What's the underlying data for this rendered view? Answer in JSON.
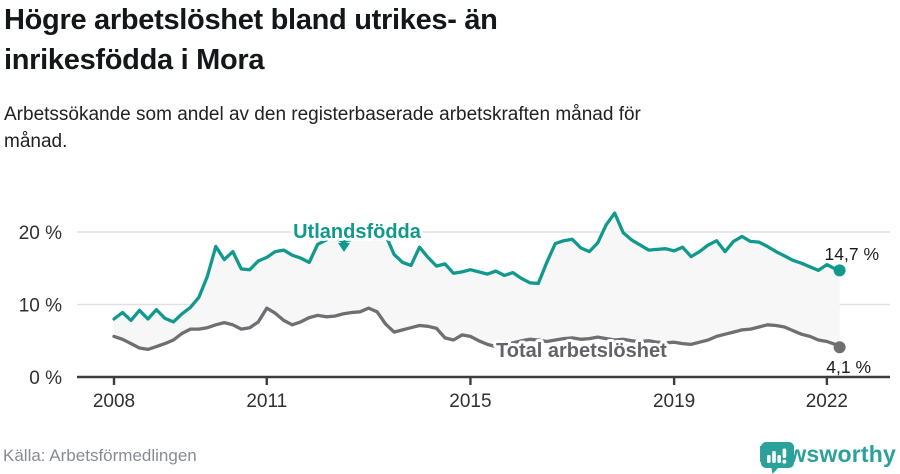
{
  "header": {
    "title_line1": "Högre arbetslöshet bland utrikes- än",
    "title_line2": "inrikesfödda i Mora",
    "subtitle_line1": "Arbetssökande som andel av den registerbaserade arbetskraften månad för",
    "subtitle_line2": "månad."
  },
  "footer": {
    "source": "Källa: Arbetsförmedlingen",
    "brand": "Newsworthy"
  },
  "colors": {
    "teal": "#12998e",
    "gray_line": "#6e6e73",
    "gray_label": "#62626a",
    "band_fill": "#f7f7f7",
    "gridline": "#e1e1e3",
    "axis": "#3d3d3d",
    "tick_text": "#303030",
    "value_text": "#1c1c1c",
    "logo_teal": "#2ba19b"
  },
  "chart_data": {
    "type": "line",
    "title": "Högre arbetslöshet bland utrikes- än inrikesfödda i Mora",
    "subtitle": "Arbetssökande som andel av den registerbaserade arbetskraften månad för månad.",
    "xlabel": "",
    "ylabel": "",
    "ylim": [
      0,
      24
    ],
    "xlim": [
      2008,
      2022.25
    ],
    "x_start": 2008.0,
    "x_step_years": 0.16667,
    "x_last_point": 2022.25,
    "grid": "horizontal",
    "band_fill_between_series": true,
    "legend_position": "inline-labels",
    "x_tick_years": [
      2008,
      2011,
      2015,
      2019,
      2022
    ],
    "x_tick_labels": [
      "2008",
      "2011",
      "2015",
      "2019",
      "2022"
    ],
    "y_ticks": [
      {
        "value": 0,
        "label": "0 %"
      },
      {
        "value": 10,
        "label": "10 %"
      },
      {
        "value": 20,
        "label": "20 %"
      }
    ],
    "series": [
      {
        "name": "Utlandsfödda",
        "color": "#12998e",
        "end_label": "14,7 %",
        "end_value": 14.7,
        "values": [
          8.0,
          8.9,
          7.8,
          9.2,
          8.0,
          9.3,
          8.1,
          7.6,
          8.7,
          9.6,
          11.0,
          13.9,
          18.0,
          16.2,
          17.3,
          14.9,
          14.8,
          16.0,
          16.5,
          17.3,
          17.5,
          16.8,
          16.4,
          15.8,
          18.3,
          18.9,
          19.3,
          18.6,
          19.0,
          19.3,
          19.8,
          20.4,
          19.6,
          16.9,
          15.8,
          15.4,
          17.9,
          16.5,
          15.3,
          15.6,
          14.3,
          14.5,
          14.8,
          14.5,
          14.2,
          14.6,
          14.0,
          14.4,
          13.6,
          13.0,
          12.9,
          15.8,
          18.4,
          18.8,
          19.0,
          17.8,
          17.3,
          18.5,
          21.0,
          22.6,
          19.9,
          18.9,
          18.2,
          17.5,
          17.6,
          17.7,
          17.4,
          17.9,
          16.6,
          17.3,
          18.2,
          18.8,
          17.3,
          18.7,
          19.4,
          18.7,
          18.6,
          18.0,
          17.3,
          16.7,
          16.1,
          15.7,
          15.2,
          14.7,
          15.5,
          14.9,
          14.7
        ]
      },
      {
        "name": "Total arbetslöshet",
        "color": "#6e6e73",
        "end_label": "4,1 %",
        "end_value": 4.1,
        "values": [
          5.6,
          5.2,
          4.6,
          4.0,
          3.8,
          4.2,
          4.6,
          5.1,
          6.0,
          6.6,
          6.6,
          6.8,
          7.2,
          7.5,
          7.2,
          6.6,
          6.8,
          7.6,
          9.5,
          8.8,
          7.8,
          7.2,
          7.6,
          8.2,
          8.5,
          8.3,
          8.4,
          8.7,
          8.9,
          9.0,
          9.5,
          9.0,
          7.3,
          6.2,
          6.5,
          6.8,
          7.1,
          7.0,
          6.7,
          5.4,
          5.1,
          5.8,
          5.6,
          5.0,
          4.5,
          4.2,
          4.4,
          4.7,
          5.0,
          5.2,
          5.1,
          4.9,
          5.1,
          5.3,
          5.4,
          5.2,
          5.3,
          5.5,
          5.3,
          5.1,
          5.2,
          5.0,
          4.9,
          5.0,
          4.8,
          4.7,
          4.8,
          4.6,
          4.5,
          4.8,
          5.1,
          5.6,
          5.9,
          6.2,
          6.5,
          6.6,
          6.9,
          7.2,
          7.1,
          6.9,
          6.4,
          5.9,
          5.6,
          5.1,
          4.9,
          4.5,
          4.1
        ]
      }
    ]
  }
}
